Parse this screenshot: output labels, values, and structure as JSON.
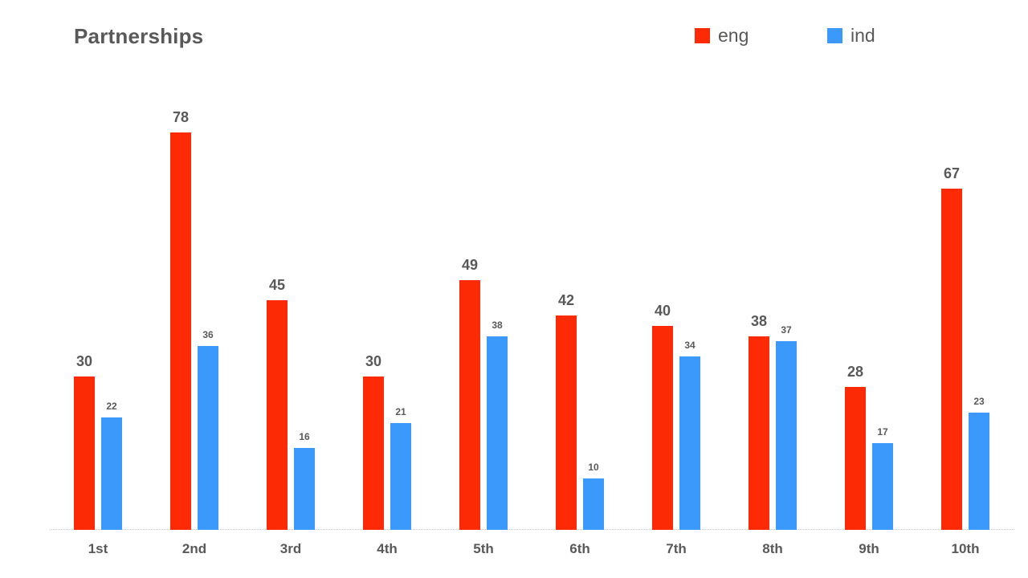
{
  "chart_data": {
    "type": "bar",
    "title": "Partnerships",
    "categories": [
      "1st",
      "2nd",
      "3rd",
      "4th",
      "5th",
      "6th",
      "7th",
      "8th",
      "9th",
      "10th"
    ],
    "series": [
      {
        "name": "eng",
        "color": "#FC2B05",
        "values": [
          30,
          78,
          45,
          30,
          49,
          42,
          40,
          38,
          28,
          67
        ]
      },
      {
        "name": "ind",
        "color": "#3B99FC",
        "values": [
          22,
          36,
          16,
          21,
          38,
          10,
          34,
          37,
          17,
          23
        ]
      }
    ],
    "xlabel": "",
    "ylabel": "",
    "ylim": [
      0,
      80
    ],
    "grid": false,
    "legend_position": "top-right",
    "data_labels": true,
    "axis_line_color": "#C9C9C9",
    "text_color": "#595959",
    "background": "#FFFFFF"
  }
}
